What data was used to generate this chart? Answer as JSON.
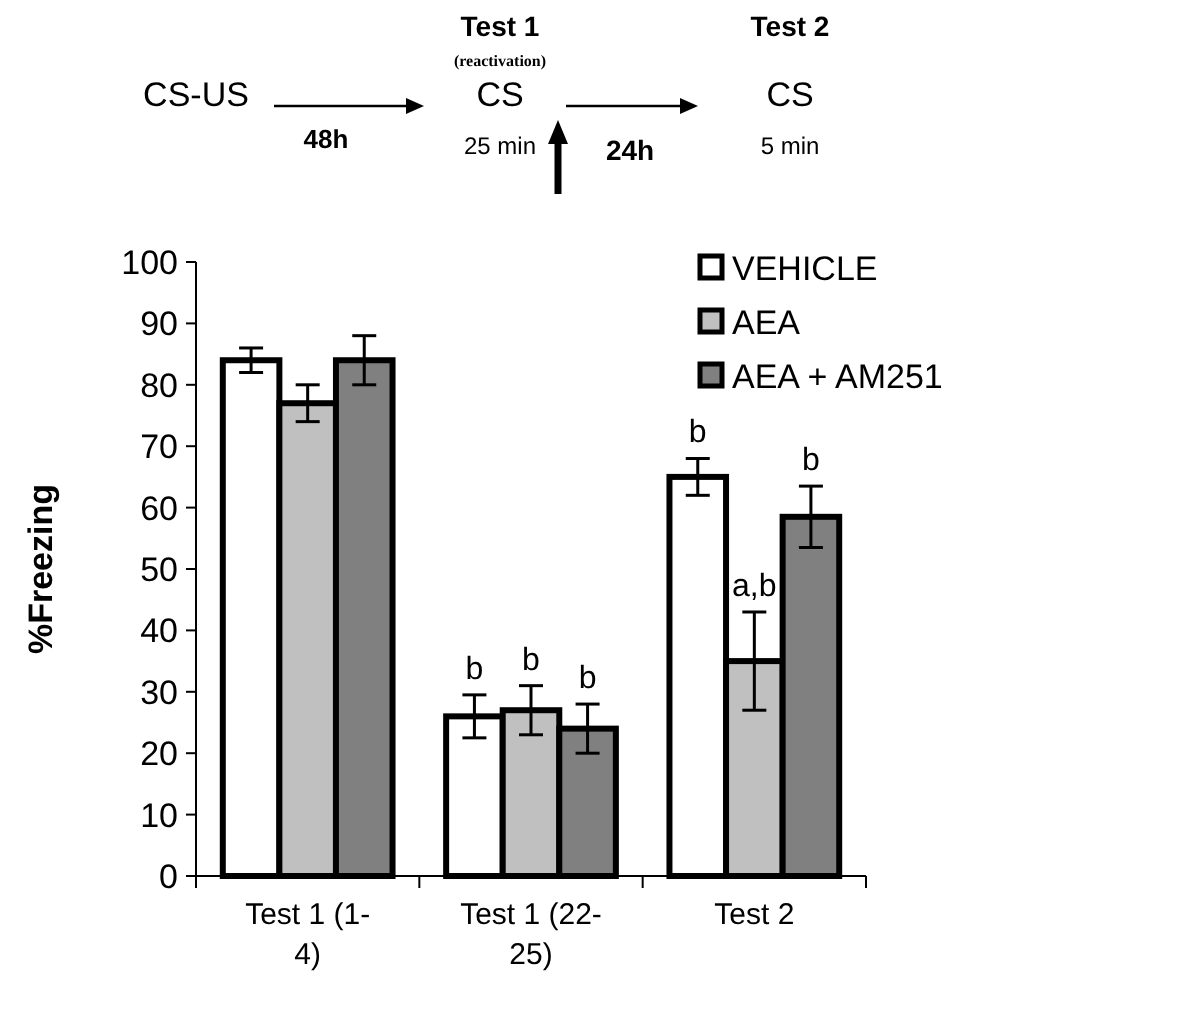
{
  "chart_data": {
    "type": "bar",
    "ylabel": "%Freezing",
    "categories": [
      "Test 1 (1-4)",
      "Test 1 (22-25)",
      "Test 2"
    ],
    "series": [
      {
        "name": "VEHICLE",
        "color": "#ffffff",
        "values": [
          84,
          26,
          65
        ],
        "errors": [
          2,
          3.5,
          3
        ],
        "value_labels": [
          null,
          "b",
          "b"
        ]
      },
      {
        "name": "AEA",
        "color": "#c0c0c0",
        "values": [
          77,
          27,
          35
        ],
        "errors": [
          3,
          4,
          8
        ],
        "value_labels": [
          null,
          "b",
          "a,b"
        ]
      },
      {
        "name": "AEA + AM251",
        "color": "#808080",
        "values": [
          84,
          24,
          58.5
        ],
        "errors": [
          4,
          4,
          5
        ],
        "value_labels": [
          null,
          "b",
          "b"
        ]
      }
    ],
    "ylim": [
      0,
      100
    ],
    "yticks": [
      0,
      10,
      20,
      30,
      40,
      50,
      60,
      70,
      80,
      90,
      100
    ],
    "grid": false,
    "legend": "top right",
    "annotations": [
      "CS-US",
      "48h",
      "Test 1",
      "(reactivation)",
      "CS",
      "25 min",
      "24h",
      "Test 2",
      "CS",
      "5 min"
    ]
  }
}
